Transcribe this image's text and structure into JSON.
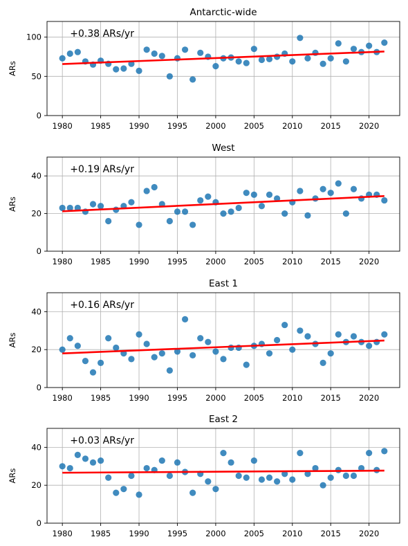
{
  "chart_data": [
    {
      "type": "scatter",
      "title": "Antarctic-wide",
      "annotation": "+0.38 ARs/yr",
      "ylabel": "ARs",
      "xlim": [
        1978,
        2024
      ],
      "ylim": [
        0,
        120
      ],
      "xticks": [
        1980,
        1985,
        1990,
        1995,
        2000,
        2005,
        2010,
        2015,
        2020
      ],
      "yticks": [
        0,
        50,
        100
      ],
      "grid": true,
      "x": [
        1980,
        1981,
        1982,
        1983,
        1984,
        1985,
        1986,
        1987,
        1988,
        1989,
        1990,
        1991,
        1992,
        1993,
        1994,
        1995,
        1996,
        1997,
        1998,
        1999,
        2000,
        2001,
        2002,
        2003,
        2004,
        2005,
        2006,
        2007,
        2008,
        2009,
        2010,
        2011,
        2012,
        2013,
        2014,
        2015,
        2016,
        2017,
        2018,
        2019,
        2020,
        2021,
        2022
      ],
      "y": [
        73,
        79,
        81,
        69,
        65,
        70,
        66,
        59,
        60,
        66,
        57,
        84,
        79,
        76,
        50,
        73,
        84,
        46,
        80,
        75,
        63,
        73,
        74,
        69,
        67,
        85,
        71,
        72,
        75,
        79,
        69,
        99,
        73,
        80,
        66,
        73,
        92,
        69,
        85,
        81,
        89,
        81,
        93
      ],
      "trend": {
        "x": [
          1980,
          2022
        ],
        "y": [
          65.7,
          81.7
        ],
        "color": "#ff0000"
      },
      "marker_color": "#1f77b4"
    },
    {
      "type": "scatter",
      "title": "West",
      "annotation": "+0.19 ARs/yr",
      "ylabel": "ARs",
      "xlim": [
        1978,
        2024
      ],
      "ylim": [
        0,
        50
      ],
      "xticks": [
        1980,
        1985,
        1990,
        1995,
        2000,
        2005,
        2010,
        2015,
        2020
      ],
      "yticks": [
        0,
        20,
        40
      ],
      "grid": true,
      "x": [
        1980,
        1981,
        1982,
        1983,
        1984,
        1985,
        1986,
        1987,
        1988,
        1989,
        1990,
        1991,
        1992,
        1993,
        1994,
        1995,
        1996,
        1997,
        1998,
        1999,
        2000,
        2001,
        2002,
        2003,
        2004,
        2005,
        2006,
        2007,
        2008,
        2009,
        2010,
        2011,
        2012,
        2013,
        2014,
        2015,
        2016,
        2017,
        2018,
        2019,
        2020,
        2021,
        2022
      ],
      "y": [
        23,
        23,
        23,
        21,
        25,
        24,
        16,
        22,
        24,
        26,
        14,
        32,
        34,
        25,
        16,
        21,
        21,
        14,
        27,
        29,
        26,
        20,
        21,
        23,
        31,
        30,
        24,
        30,
        28,
        20,
        26,
        32,
        19,
        28,
        33,
        31,
        36,
        20,
        33,
        28,
        30,
        30,
        27
      ],
      "trend": {
        "x": [
          1980,
          2022
        ],
        "y": [
          21.2,
          29.3
        ],
        "color": "#ff0000"
      },
      "marker_color": "#1f77b4"
    },
    {
      "type": "scatter",
      "title": "East 1",
      "annotation": "+0.16 ARs/yr",
      "ylabel": "ARs",
      "xlim": [
        1978,
        2024
      ],
      "ylim": [
        0,
        50
      ],
      "xticks": [
        1980,
        1985,
        1990,
        1995,
        2000,
        2005,
        2010,
        2015,
        2020
      ],
      "yticks": [
        0,
        20,
        40
      ],
      "grid": true,
      "x": [
        1980,
        1981,
        1982,
        1983,
        1984,
        1985,
        1986,
        1987,
        1988,
        1989,
        1990,
        1991,
        1992,
        1993,
        1994,
        1995,
        1996,
        1997,
        1998,
        1999,
        2000,
        2001,
        2002,
        2003,
        2004,
        2005,
        2006,
        2007,
        2008,
        2009,
        2010,
        2011,
        2012,
        2013,
        2014,
        2015,
        2016,
        2017,
        2018,
        2019,
        2020,
        2021,
        2022
      ],
      "y": [
        20,
        26,
        22,
        14,
        8,
        13,
        26,
        21,
        18,
        15,
        28,
        23,
        16,
        18,
        9,
        19,
        36,
        17,
        26,
        24,
        19,
        15,
        21,
        21,
        12,
        22,
        23,
        18,
        25,
        33,
        20,
        30,
        27,
        23,
        13,
        18,
        28,
        24,
        27,
        24,
        22,
        24,
        28
      ],
      "trend": {
        "x": [
          1980,
          2022
        ],
        "y": [
          18.0,
          24.8
        ],
        "color": "#ff0000"
      },
      "marker_color": "#1f77b4"
    },
    {
      "type": "scatter",
      "title": "East 2",
      "annotation": "+0.03 ARs/yr",
      "ylabel": "ARs",
      "xlim": [
        1978,
        2024
      ],
      "ylim": [
        0,
        50
      ],
      "xticks": [
        1980,
        1985,
        1990,
        1995,
        2000,
        2005,
        2010,
        2015,
        2020
      ],
      "yticks": [
        0,
        20,
        40
      ],
      "grid": true,
      "x": [
        1980,
        1981,
        1982,
        1983,
        1984,
        1985,
        1986,
        1987,
        1988,
        1989,
        1990,
        1991,
        1992,
        1993,
        1994,
        1995,
        1996,
        1997,
        1998,
        1999,
        2000,
        2001,
        2002,
        2003,
        2004,
        2005,
        2006,
        2007,
        2008,
        2009,
        2010,
        2011,
        2012,
        2013,
        2014,
        2015,
        2016,
        2017,
        2018,
        2019,
        2020,
        2021,
        2022
      ],
      "y": [
        30,
        29,
        36,
        34,
        32,
        33,
        24,
        16,
        18,
        25,
        15,
        29,
        28,
        33,
        25,
        32,
        27,
        16,
        26,
        22,
        18,
        37,
        32,
        25,
        24,
        33,
        23,
        24,
        22,
        26,
        23,
        37,
        26,
        29,
        20,
        24,
        28,
        25,
        25,
        29,
        37,
        28,
        38
      ],
      "trend": {
        "x": [
          1980,
          2022
        ],
        "y": [
          26.6,
          27.7
        ],
        "color": "#ff0000"
      },
      "marker_color": "#1f77b4"
    }
  ]
}
